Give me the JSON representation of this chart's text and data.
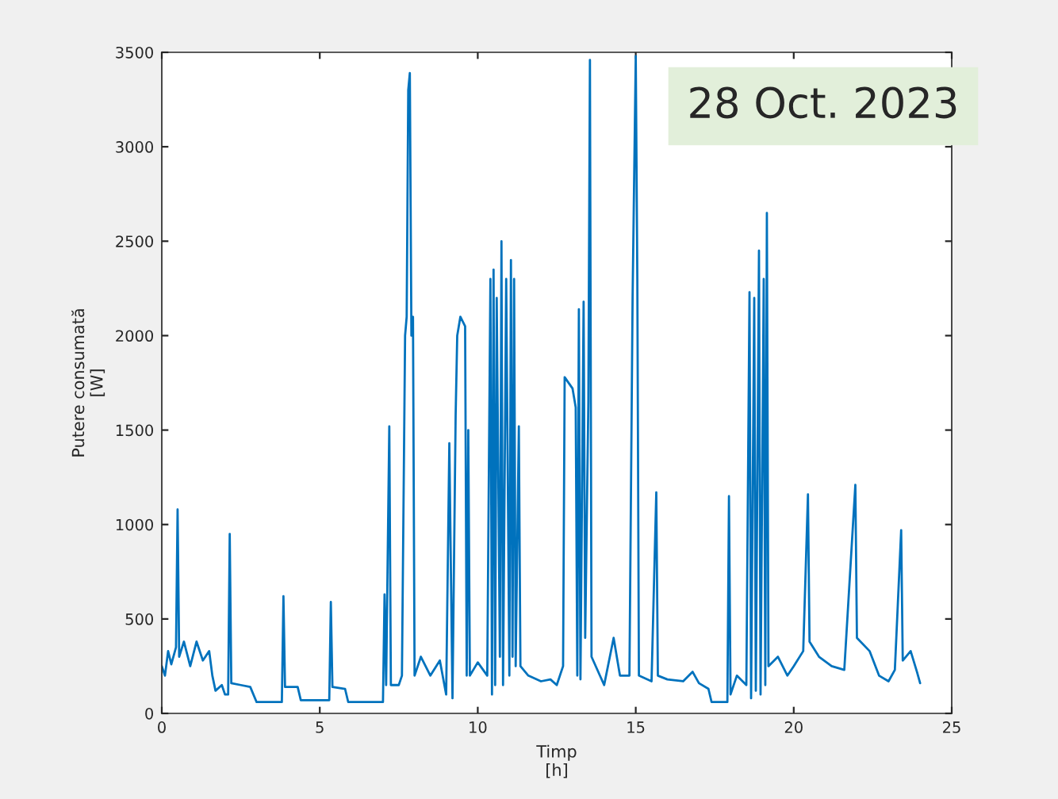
{
  "chart_data": {
    "type": "line",
    "xlabel": "Timp\n[h]",
    "ylabel": "Putere consumată\n[W]",
    "annotations": [
      "28 Oct. 2023"
    ],
    "x": [
      0,
      0.1,
      0.2,
      0.3,
      0.45,
      0.5,
      0.55,
      0.7,
      0.9,
      1.1,
      1.3,
      1.5,
      1.6,
      1.7,
      1.9,
      2.0,
      2.1,
      2.15,
      2.2,
      2.5,
      2.8,
      3.0,
      3.5,
      3.8,
      3.85,
      3.9,
      4.3,
      4.4,
      5.0,
      5.3,
      5.35,
      5.4,
      5.8,
      5.9,
      6.5,
      7.0,
      7.05,
      7.1,
      7.2,
      7.25,
      7.5,
      7.6,
      7.7,
      7.75,
      7.8,
      7.85,
      7.9,
      7.95,
      8.0,
      8.2,
      8.5,
      8.8,
      9.0,
      9.1,
      9.2,
      9.3,
      9.35,
      9.45,
      9.6,
      9.65,
      9.7,
      9.75,
      10.0,
      10.3,
      10.4,
      10.45,
      10.5,
      10.55,
      10.6,
      10.7,
      10.75,
      10.8,
      10.9,
      11.0,
      11.05,
      11.1,
      11.15,
      11.2,
      11.3,
      11.35,
      11.6,
      12.0,
      12.3,
      12.5,
      12.7,
      12.75,
      13.0,
      13.1,
      13.15,
      13.2,
      13.25,
      13.35,
      13.4,
      13.5,
      13.55,
      13.6,
      14.0,
      14.3,
      14.5,
      14.8,
      14.9,
      15.0,
      15.05,
      15.1,
      15.5,
      15.65,
      15.7,
      16.0,
      16.5,
      16.8,
      17.0,
      17.3,
      17.4,
      17.9,
      17.95,
      18.0,
      18.2,
      18.5,
      18.6,
      18.65,
      18.75,
      18.8,
      18.9,
      18.95,
      19.05,
      19.1,
      19.15,
      19.2,
      19.5,
      19.8,
      20.0,
      20.3,
      20.45,
      20.5,
      20.8,
      21.2,
      21.6,
      21.95,
      22.0,
      22.4,
      22.7,
      23.0,
      23.2,
      23.4,
      23.45,
      23.7,
      23.9,
      24.0
    ],
    "series": [
      {
        "color": "#0072bd",
        "values": [
          250,
          200,
          330,
          260,
          350,
          1080,
          300,
          380,
          250,
          380,
          280,
          330,
          200,
          120,
          150,
          100,
          100,
          950,
          160,
          150,
          140,
          60,
          60,
          60,
          620,
          140,
          140,
          70,
          70,
          70,
          590,
          140,
          130,
          60,
          60,
          60,
          630,
          150,
          1520,
          150,
          150,
          200,
          2000,
          2100,
          3300,
          3390,
          2000,
          2100,
          200,
          300,
          200,
          280,
          100,
          1430,
          80,
          1580,
          2000,
          2100,
          2050,
          200,
          1500,
          200,
          270,
          200,
          2300,
          100,
          2350,
          150,
          2200,
          300,
          2500,
          150,
          2300,
          200,
          2400,
          300,
          2300,
          250,
          1520,
          250,
          200,
          170,
          180,
          150,
          250,
          1780,
          1720,
          1620,
          200,
          2140,
          180,
          2180,
          400,
          1650,
          3460,
          300,
          150,
          400,
          200,
          200,
          2200,
          3480,
          2300,
          200,
          170,
          1170,
          200,
          180,
          170,
          220,
          160,
          130,
          60,
          60,
          1150,
          100,
          200,
          150,
          2230,
          80,
          2200,
          120,
          2450,
          100,
          2300,
          150,
          2650,
          250,
          300,
          200,
          250,
          330,
          1160,
          380,
          300,
          250,
          230,
          1210,
          400,
          330,
          200,
          170,
          230,
          970,
          280,
          330,
          220,
          160
        ]
      }
    ],
    "xlim": [
      0,
      25
    ],
    "xticks": [
      0,
      5,
      10,
      15,
      20,
      25
    ],
    "ylim": [
      0,
      3500
    ],
    "yticks": [
      0,
      500,
      1000,
      1500,
      2000,
      2500,
      3000,
      3500
    ],
    "grid": false,
    "legend": false,
    "marker": "none",
    "line_style": "solid"
  }
}
